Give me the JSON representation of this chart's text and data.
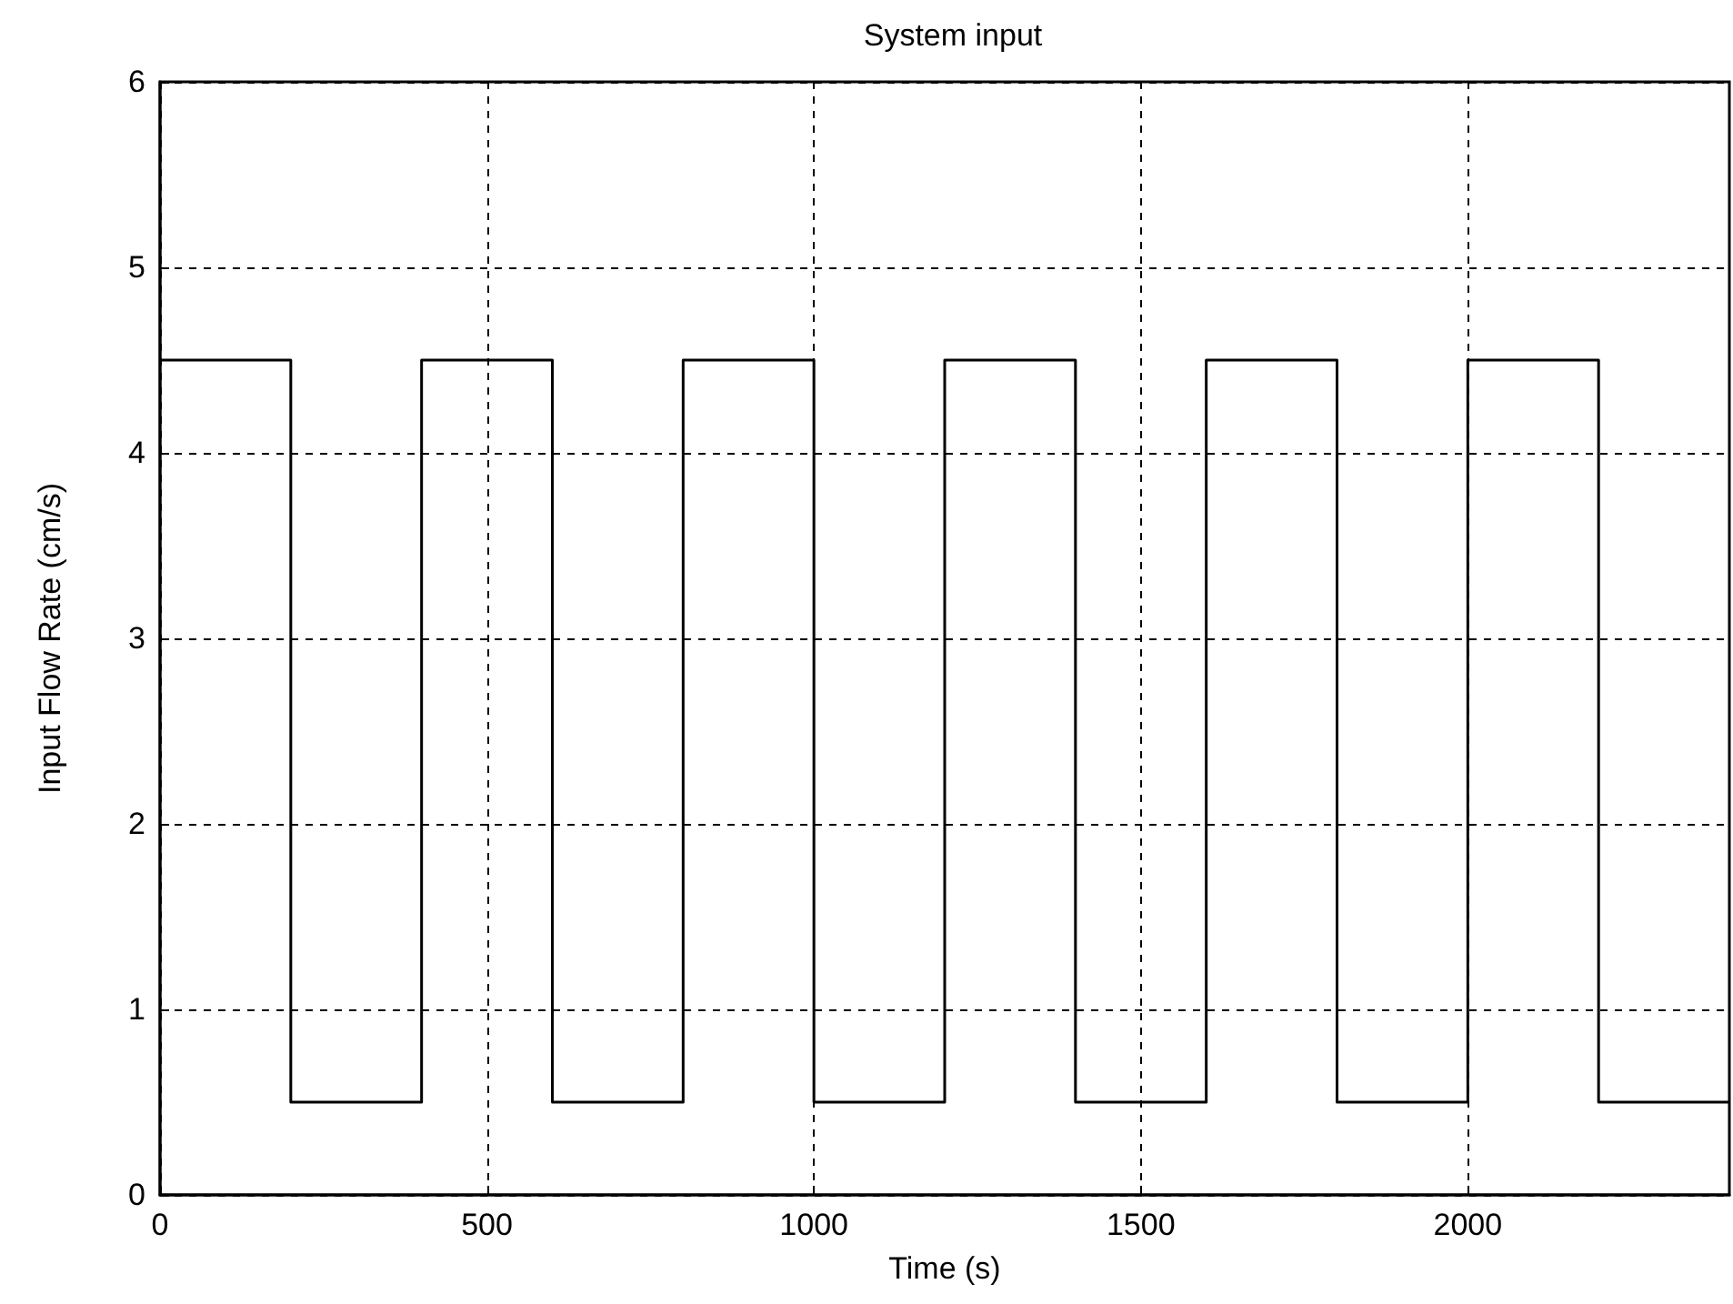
{
  "chart_data": {
    "type": "step",
    "title": "System input",
    "xlabel": "Time (s)",
    "ylabel": "Input Flow Rate (cm/s)",
    "x": [
      0,
      200,
      400,
      600,
      800,
      1000,
      1200,
      1400,
      1600,
      1800,
      2000,
      2200,
      2400
    ],
    "series": [
      {
        "color": "#000000",
        "values": [
          4.5,
          0.5,
          4.5,
          0.5,
          4.5,
          0.5,
          4.5,
          0.5,
          4.5,
          0.5,
          4.5,
          0.5,
          0.5
        ]
      }
    ],
    "xlim": [
      0,
      2400
    ],
    "xticks": [
      0,
      500,
      1000,
      1500,
      2000
    ],
    "ylim": [
      0,
      6
    ],
    "yticks": [
      0,
      1,
      2,
      3,
      4,
      5,
      6
    ],
    "grid": true,
    "marker": "none",
    "line_style": "solid"
  }
}
